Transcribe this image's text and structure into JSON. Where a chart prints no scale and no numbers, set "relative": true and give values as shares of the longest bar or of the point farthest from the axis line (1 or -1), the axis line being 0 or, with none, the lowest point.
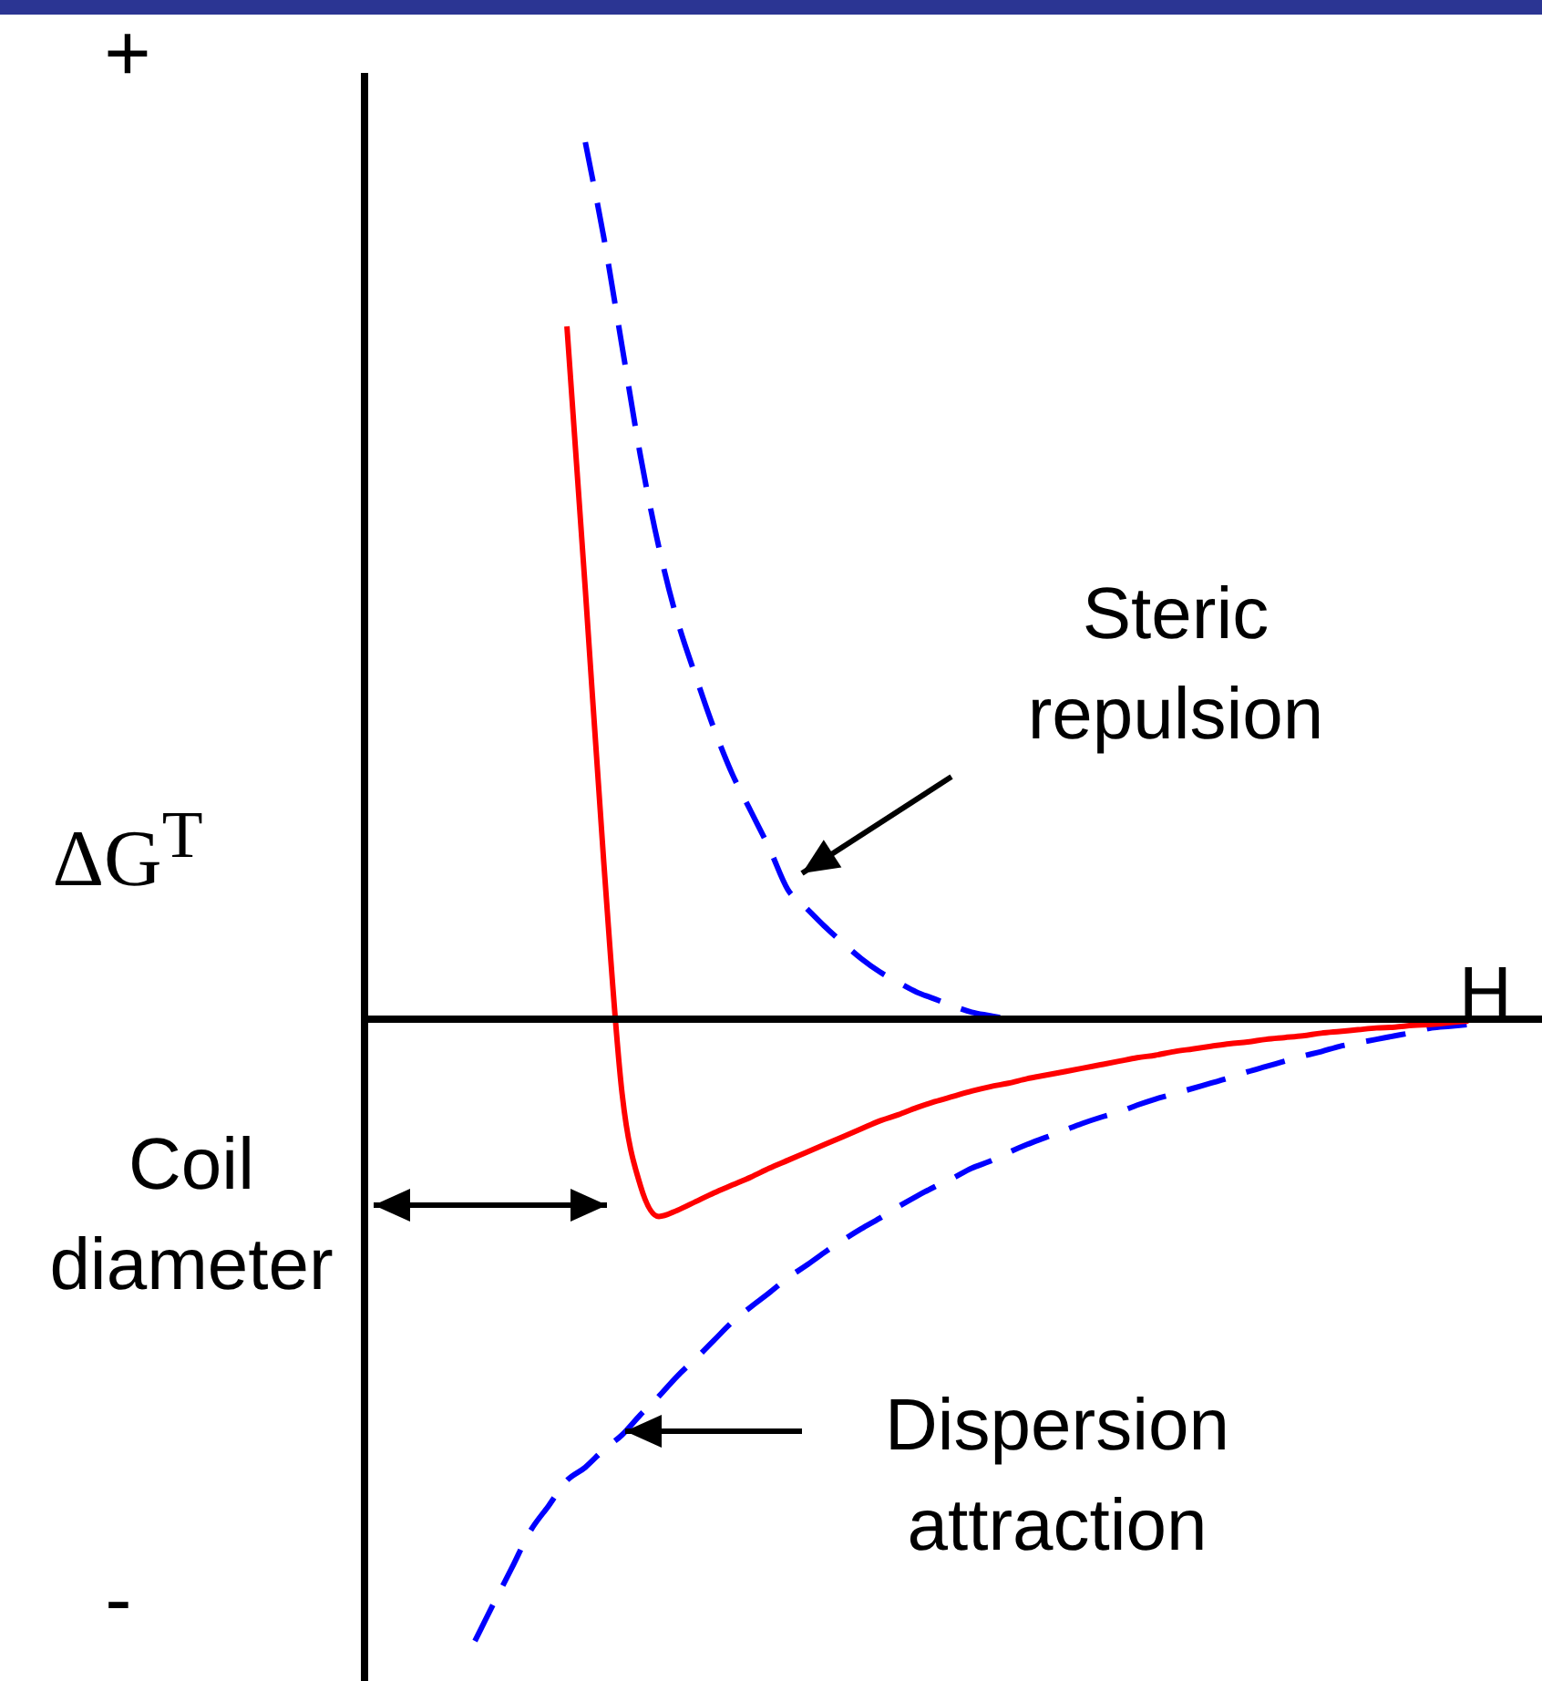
{
  "chart_data": {
    "type": "line",
    "relative": true,
    "xlabel": "H",
    "ylabel": "ΔG$^{T}$",
    "legend": false,
    "marker": "none",
    "categories": [
      null,
      null,
      null,
      null,
      null,
      null,
      null,
      null,
      null,
      null,
      null,
      null,
      null,
      null,
      null,
      null,
      null,
      null,
      null,
      null,
      null,
      null,
      null,
      null,
      null,
      null,
      null,
      null,
      null,
      null,
      null,
      null,
      null,
      null,
      null,
      null,
      null,
      null,
      null,
      null,
      null,
      null,
      null,
      null,
      null,
      null,
      null,
      null,
      null,
      null,
      null,
      null,
      null,
      null,
      null,
      null,
      null,
      null,
      null,
      null,
      null,
      null,
      null,
      null,
      null
    ],
    "series": [
      {
        "color": "#ff0000",
        "line_style": "solid",
        "values": [
          null,
          null,
          null,
          null,
          null,
          null,
          null,
          null,
          null,
          null,
          null,
          0.79,
          0.49,
          0.18,
          -0.085,
          -0.19,
          -0.225,
          -0.218,
          -0.208,
          -0.198,
          -0.189,
          -0.18,
          -0.17,
          -0.161,
          -0.152,
          -0.143,
          -0.134,
          -0.125,
          -0.116,
          -0.109,
          -0.101,
          -0.094,
          -0.088,
          -0.082,
          -0.077,
          -0.073,
          -0.068,
          -0.064,
          -0.06,
          -0.056,
          -0.052,
          -0.048,
          -0.044,
          -0.041,
          -0.037,
          -0.034,
          -0.031,
          -0.028,
          -0.026,
          -0.023,
          -0.021,
          -0.019,
          -0.016,
          -0.014,
          -0.012,
          -0.01,
          -0.009,
          -0.007,
          -0.006,
          -0.004,
          -0.002,
          null,
          null,
          null,
          null
        ]
      },
      {
        "color": "#0000ff",
        "line_style": "dashed",
        "values": [
          null,
          null,
          null,
          null,
          null,
          null,
          null,
          null,
          null,
          null,
          null,
          null,
          1.0,
          0.892,
          0.767,
          0.642,
          0.538,
          0.455,
          0.391,
          0.331,
          0.279,
          0.237,
          0.195,
          0.148,
          0.127,
          0.106,
          0.087,
          0.069,
          0.054,
          0.042,
          0.031,
          0.023,
          0.015,
          0.008,
          0.004,
          0,
          null,
          null,
          null,
          null,
          null,
          null,
          null,
          null,
          null,
          null,
          null,
          null,
          null,
          null,
          null,
          null,
          null,
          null,
          null,
          null,
          null,
          null,
          null,
          null,
          null,
          null,
          null,
          null,
          null
        ]
      },
      {
        "color": "#0000ff",
        "line_style": "dashed",
        "values": [
          null,
          null,
          null,
          null,
          null,
          null,
          -0.709,
          -0.667,
          -0.626,
          -0.584,
          -0.555,
          -0.526,
          -0.511,
          -0.491,
          -0.474,
          -0.451,
          -0.43,
          -0.407,
          -0.387,
          -0.366,
          -0.345,
          -0.328,
          -0.312,
          -0.295,
          -0.281,
          -0.266,
          -0.252,
          -0.239,
          -0.227,
          -0.214,
          -0.202,
          -0.191,
          -0.181,
          -0.17,
          -0.162,
          -0.152,
          -0.143,
          -0.135,
          -0.127,
          -0.119,
          -0.112,
          -0.106,
          -0.098,
          -0.091,
          -0.085,
          -0.079,
          -0.073,
          -0.067,
          -0.06,
          -0.054,
          -0.048,
          -0.042,
          -0.037,
          -0.031,
          -0.027,
          -0.023,
          -0.019,
          -0.015,
          -0.01,
          -0.008,
          -0.006,
          null,
          null,
          null,
          null
        ]
      }
    ],
    "annotations": [
      "+",
      "-",
      "Steric repulsion",
      "Dispersion attraction",
      "Coil diameter"
    ]
  }
}
